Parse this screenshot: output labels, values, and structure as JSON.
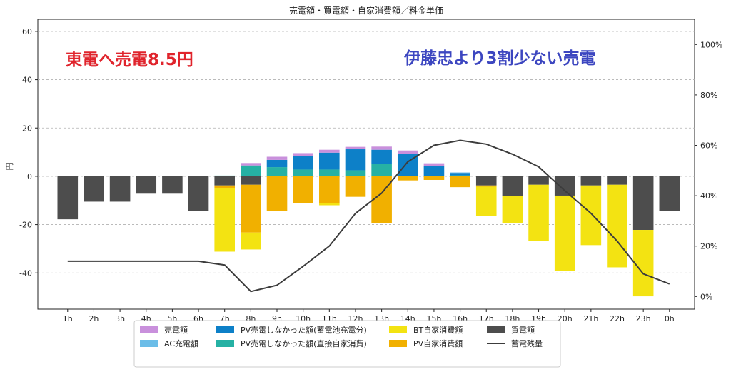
{
  "chart_data": {
    "type": "bar",
    "title": "売電額・買電額・自家消費額／料金単価",
    "ylabel": "円",
    "ylim": [
      -55,
      65
    ],
    "y_ticks": [
      -40,
      -20,
      0,
      20,
      40,
      60
    ],
    "y2lim": [
      -0.05,
      1.1
    ],
    "y2_ticks": [
      0,
      0.2,
      0.4,
      0.6,
      0.8,
      1.0
    ],
    "y2_tick_labels": [
      "0%",
      "20%",
      "40%",
      "60%",
      "80%",
      "100%"
    ],
    "grid": true,
    "legend_placement": "bottom-center",
    "categories": [
      "1h",
      "2h",
      "3h",
      "4h",
      "5h",
      "6h",
      "7h",
      "8h",
      "9h",
      "10h",
      "11h",
      "12h",
      "13h",
      "14h",
      "15h",
      "16h",
      "17h",
      "18h",
      "19h",
      "20h",
      "21h",
      "22h",
      "23h",
      "0h"
    ],
    "stacks_positive": [
      {
        "name": "PV売電しなかった額(直接自家消費)",
        "color": "#26b1a4",
        "values": [
          0,
          0,
          0,
          0,
          0,
          0,
          0.3,
          4.5,
          3.8,
          2.8,
          2.8,
          2.5,
          5.2,
          0,
          0,
          0.4,
          0,
          0,
          0,
          0,
          0,
          0,
          0,
          0
        ]
      },
      {
        "name": "PV売電しなかった額(蓄電池充電分)",
        "color": "#0d80c8",
        "values": [
          0,
          0,
          0,
          0,
          0,
          0,
          0,
          0,
          3.0,
          5.5,
          7.0,
          8.7,
          5.8,
          9.3,
          4.2,
          1.0,
          0,
          0,
          0,
          0,
          0,
          0,
          0,
          0
        ]
      },
      {
        "name": "AC充電額",
        "color": "#6bbde8",
        "values": [
          0,
          0,
          0,
          0,
          0,
          0,
          0,
          0,
          0,
          0,
          0,
          0,
          0,
          0,
          0,
          0.2,
          0,
          0,
          0,
          0,
          0,
          0,
          0,
          0
        ]
      },
      {
        "name": "売電額",
        "color": "#c990dc",
        "values": [
          0,
          0,
          0,
          0,
          0,
          0,
          0,
          1.0,
          1.3,
          1.3,
          1.2,
          1.0,
          1.3,
          1.4,
          1.2,
          0,
          0,
          0,
          0,
          0,
          0,
          0,
          0,
          0
        ]
      }
    ],
    "stacks_negative": [
      {
        "name": "買電額",
        "color": "#4d4d4d",
        "values": [
          -17.8,
          -10.5,
          -10.5,
          -7.2,
          -7.2,
          -14.3,
          -3.8,
          -3.5,
          0,
          0,
          0,
          0,
          0,
          0,
          0,
          0,
          -3.8,
          -8.3,
          -3.5,
          -8.0,
          -3.8,
          -3.5,
          -22.2,
          -14.3
        ]
      },
      {
        "name": "PV自家消費額",
        "color": "#f1b000",
        "values": [
          0,
          0,
          0,
          0,
          0,
          0,
          -1.2,
          -19.8,
          -14.5,
          -11.0,
          -11.0,
          -8.5,
          -19.5,
          -1.7,
          -1.5,
          -4.5,
          -0.5,
          0,
          0,
          0,
          0,
          0,
          0,
          0
        ]
      },
      {
        "name": "BT自家消費額",
        "color": "#f3e312",
        "values": [
          0,
          0,
          0,
          0,
          0,
          0,
          -26.2,
          -7.0,
          0,
          0,
          -1.0,
          0,
          0,
          0,
          0,
          0,
          -12.0,
          -11.2,
          -23.2,
          -31.3,
          -24.7,
          -34.2,
          -27.5,
          0
        ]
      }
    ],
    "line": {
      "name": "蓄電残量",
      "color": "#3c3c3c",
      "axis": "right",
      "values": [
        0.14,
        0.14,
        0.14,
        0.14,
        0.14,
        0.14,
        0.125,
        0.02,
        0.045,
        0.12,
        0.2,
        0.33,
        0.41,
        0.535,
        0.6,
        0.62,
        0.605,
        0.565,
        0.515,
        0.42,
        0.33,
        0.22,
        0.09,
        0.05
      ]
    }
  },
  "annotations": {
    "left": "東電へ売電8.5円",
    "right": "伊藤忠より3割少ない売電"
  },
  "legend": {
    "columns": [
      [
        {
          "label": "売電額",
          "color": "#c990dc",
          "kind": "patch"
        },
        {
          "label": "AC充電額",
          "color": "#6bbde8",
          "kind": "patch"
        }
      ],
      [
        {
          "label": "PV売電しなかった額(蓄電池充電分)",
          "color": "#0d80c8",
          "kind": "patch"
        },
        {
          "label": "PV売電しなかった額(直接自家消費)",
          "color": "#26b1a4",
          "kind": "patch"
        }
      ],
      [
        {
          "label": "BT自家消費額",
          "color": "#f3e312",
          "kind": "patch"
        },
        {
          "label": "PV自家消費額",
          "color": "#f1b000",
          "kind": "patch"
        }
      ],
      [
        {
          "label": "買電額",
          "color": "#4d4d4d",
          "kind": "patch"
        },
        {
          "label": "蓄電残量",
          "color": "#3c3c3c",
          "kind": "line"
        }
      ]
    ]
  }
}
